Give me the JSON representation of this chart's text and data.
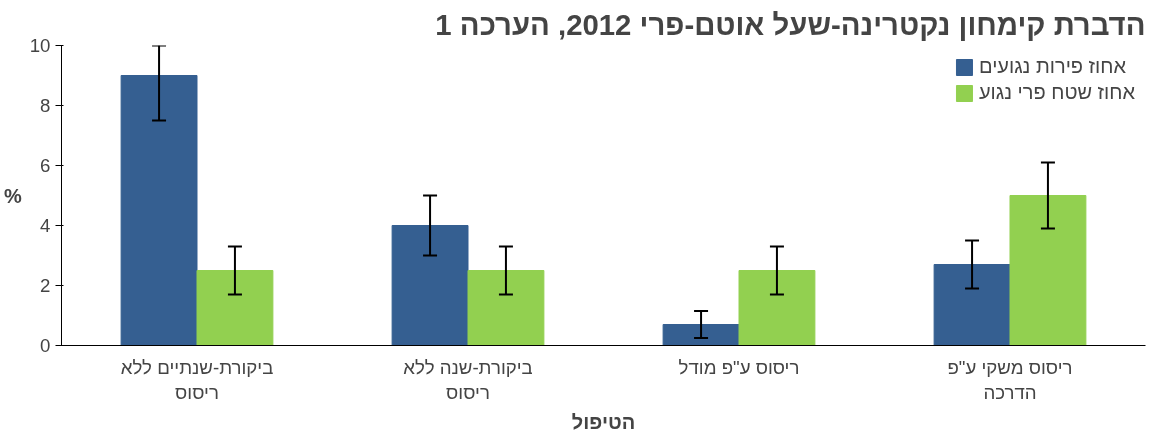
{
  "chart_data": {
    "type": "bar",
    "title": "הדברת קימחון נקטרינה-שעל אוטם-פרי 2012, הערכה 1",
    "xlabel": "הטיפול",
    "ylabel": "%",
    "categories": [
      "ביקורת-שנתיים ללא ריסוס",
      "ביקורת-שנה ללא ריסוס",
      "ריסוס ע\"פ מודל",
      "ריסוס משקי ע\"פ הדרכה"
    ],
    "series": [
      {
        "name": "אחוז פירות נגועים",
        "color": "#355f91",
        "values": [
          9,
          4,
          0.7,
          2.7
        ],
        "errors": [
          [
            7.5,
            10
          ],
          1,
          0.45,
          0.8
        ]
      },
      {
        "name": "אחוז שטח פרי נגוע",
        "color": "#92d050",
        "values": [
          2.5,
          2.5,
          2.5,
          5
        ],
        "errors": [
          0.8,
          0.8,
          0.8,
          1.1
        ]
      }
    ],
    "ylim": [
      0,
      10
    ],
    "yticks": [
      0,
      2,
      4,
      6,
      8,
      10
    ],
    "grid": false,
    "legend": "top right"
  }
}
